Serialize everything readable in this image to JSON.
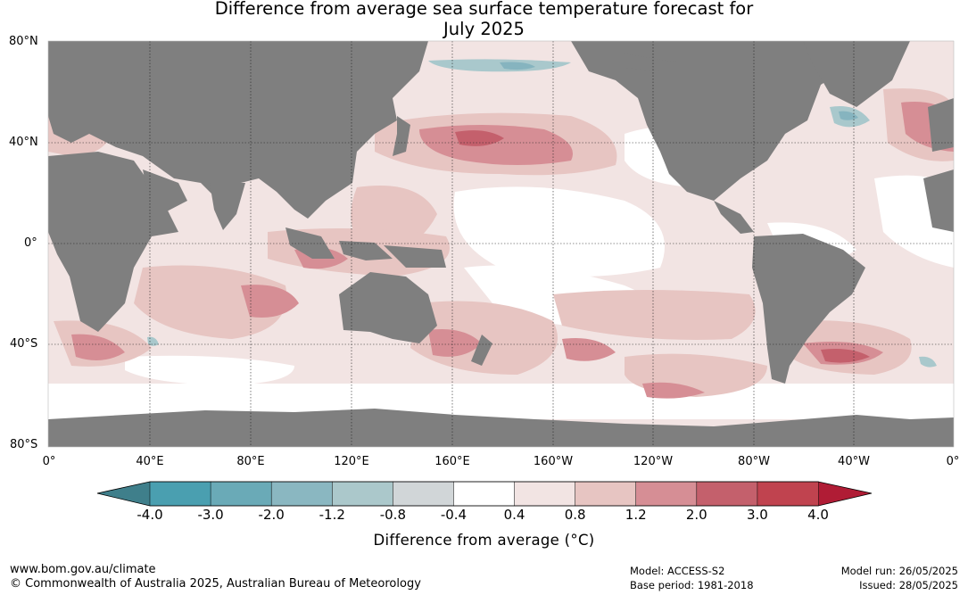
{
  "title": {
    "line1": "Difference from average sea surface temperature forecast for",
    "line2": "July 2025"
  },
  "map": {
    "lat_labels": [
      "80°N",
      "40°N",
      "0°",
      "40°S",
      "80°S"
    ],
    "lon_labels": [
      "0°",
      "40°E",
      "80°E",
      "120°E",
      "160°E",
      "160°W",
      "120°W",
      "80°W",
      "40°W",
      "0°"
    ],
    "colors": {
      "land": "#7f7f7f",
      "ocean_neutral": "#ffffff",
      "warm_light": "#f2e4e3",
      "warm_mid": "#e7c5c2",
      "warm_strong": "#d68e95",
      "warm_hot": "#c4606c",
      "cool_light": "#a9c8cc",
      "cool_mid": "#86b4bf"
    },
    "anomaly_summary": "Warmer than average across most oceans; cooler patches in Arctic and North Atlantic"
  },
  "colorbar": {
    "title": "Difference from average (°C)",
    "tick_labels": [
      "-4.0",
      "-3.0",
      "-2.0",
      "-1.2",
      "-0.8",
      "-0.4",
      "0.4",
      "0.8",
      "1.2",
      "2.0",
      "3.0",
      "4.0"
    ],
    "bins": [
      {
        "color": "#4a9fb0"
      },
      {
        "color": "#6aaab7"
      },
      {
        "color": "#8ab7c1"
      },
      {
        "color": "#abc8cb"
      },
      {
        "color": "#d1d6d8"
      },
      {
        "color": "#ffffff"
      },
      {
        "color": "#f2e4e3"
      },
      {
        "color": "#e7c5c2"
      },
      {
        "color": "#d68e95"
      },
      {
        "color": "#c4606c"
      },
      {
        "color": "#c0434f"
      }
    ],
    "under_color": "#3f7f8b",
    "over_color": "#b01c35"
  },
  "footer": {
    "website": "www.bom.gov.au/climate",
    "copyright": "© Commonwealth of Australia 2025, Australian Bureau of Meteorology",
    "model": "Model: ACCESS-S2",
    "base_period": "Base period: 1981-2018",
    "model_run": "Model run: 26/05/2025",
    "issued": "Issued: 28/05/2025"
  }
}
